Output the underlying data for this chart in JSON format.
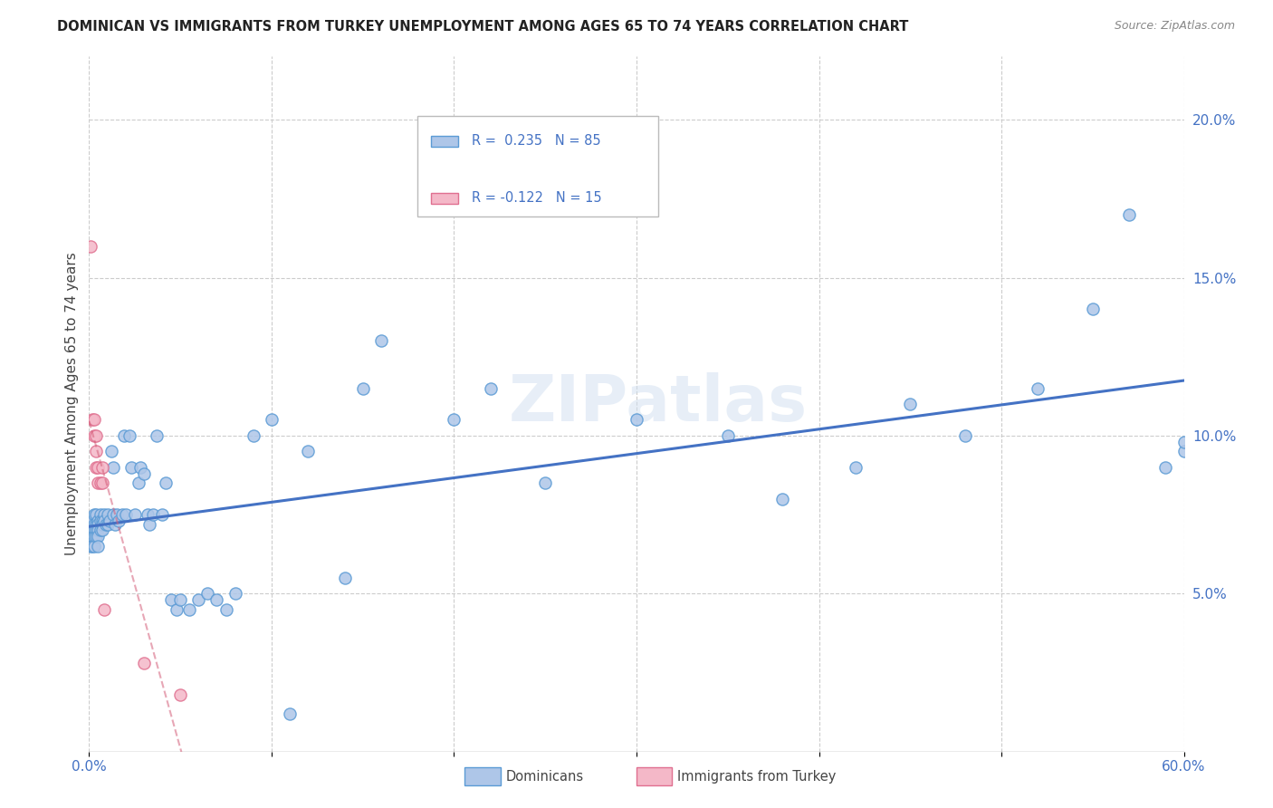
{
  "title": "DOMINICAN VS IMMIGRANTS FROM TURKEY UNEMPLOYMENT AMONG AGES 65 TO 74 YEARS CORRELATION CHART",
  "source": "Source: ZipAtlas.com",
  "ylabel": "Unemployment Among Ages 65 to 74 years",
  "xlim": [
    0.0,
    0.6
  ],
  "ylim": [
    0.0,
    0.22
  ],
  "xtick_positions": [
    0.0,
    0.1,
    0.2,
    0.3,
    0.4,
    0.5,
    0.6
  ],
  "xticklabels": [
    "0.0%",
    "",
    "",
    "",
    "",
    "",
    "60.0%"
  ],
  "ytick_positions": [
    0.05,
    0.1,
    0.15,
    0.2
  ],
  "ytick_labels": [
    "5.0%",
    "10.0%",
    "15.0%",
    "20.0%"
  ],
  "dominican_R": 0.235,
  "dominican_N": 85,
  "turkey_R": -0.122,
  "turkey_N": 15,
  "dominican_color": "#aec6e8",
  "dominican_edge_color": "#5b9bd5",
  "dominican_line_color": "#4472c4",
  "turkey_color": "#f4b8c8",
  "turkey_edge_color": "#e07090",
  "turkey_line_color": "#d45f7a",
  "background_color": "#ffffff",
  "grid_color": "#cccccc",
  "watermark": "ZIPatlas",
  "dominican_x": [
    0.001,
    0.001,
    0.001,
    0.002,
    0.002,
    0.002,
    0.002,
    0.003,
    0.003,
    0.003,
    0.003,
    0.003,
    0.004,
    0.004,
    0.004,
    0.004,
    0.005,
    0.005,
    0.005,
    0.005,
    0.005,
    0.006,
    0.006,
    0.006,
    0.007,
    0.007,
    0.007,
    0.008,
    0.008,
    0.009,
    0.01,
    0.01,
    0.011,
    0.012,
    0.013,
    0.013,
    0.014,
    0.015,
    0.016,
    0.018,
    0.019,
    0.02,
    0.022,
    0.023,
    0.025,
    0.027,
    0.028,
    0.03,
    0.032,
    0.033,
    0.035,
    0.037,
    0.04,
    0.042,
    0.045,
    0.048,
    0.05,
    0.055,
    0.06,
    0.065,
    0.07,
    0.075,
    0.08,
    0.09,
    0.1,
    0.11,
    0.12,
    0.14,
    0.15,
    0.16,
    0.2,
    0.22,
    0.25,
    0.3,
    0.35,
    0.38,
    0.42,
    0.45,
    0.48,
    0.52,
    0.55,
    0.57,
    0.59,
    0.6,
    0.6
  ],
  "dominican_y": [
    0.072,
    0.068,
    0.065,
    0.073,
    0.07,
    0.068,
    0.065,
    0.075,
    0.072,
    0.07,
    0.068,
    0.065,
    0.075,
    0.072,
    0.07,
    0.068,
    0.073,
    0.072,
    0.07,
    0.068,
    0.065,
    0.075,
    0.073,
    0.07,
    0.073,
    0.072,
    0.07,
    0.075,
    0.073,
    0.072,
    0.075,
    0.072,
    0.073,
    0.095,
    0.09,
    0.075,
    0.072,
    0.075,
    0.073,
    0.075,
    0.1,
    0.075,
    0.1,
    0.09,
    0.075,
    0.085,
    0.09,
    0.088,
    0.075,
    0.072,
    0.075,
    0.1,
    0.075,
    0.085,
    0.048,
    0.045,
    0.048,
    0.045,
    0.048,
    0.05,
    0.048,
    0.045,
    0.05,
    0.1,
    0.105,
    0.012,
    0.095,
    0.055,
    0.115,
    0.13,
    0.105,
    0.115,
    0.085,
    0.105,
    0.1,
    0.08,
    0.09,
    0.11,
    0.1,
    0.115,
    0.14,
    0.17,
    0.09,
    0.095,
    0.098
  ],
  "turkey_x": [
    0.001,
    0.002,
    0.003,
    0.003,
    0.004,
    0.004,
    0.004,
    0.005,
    0.005,
    0.006,
    0.007,
    0.007,
    0.008,
    0.03,
    0.05
  ],
  "turkey_y": [
    0.16,
    0.105,
    0.105,
    0.1,
    0.1,
    0.095,
    0.09,
    0.09,
    0.085,
    0.085,
    0.09,
    0.085,
    0.045,
    0.028,
    0.018
  ]
}
